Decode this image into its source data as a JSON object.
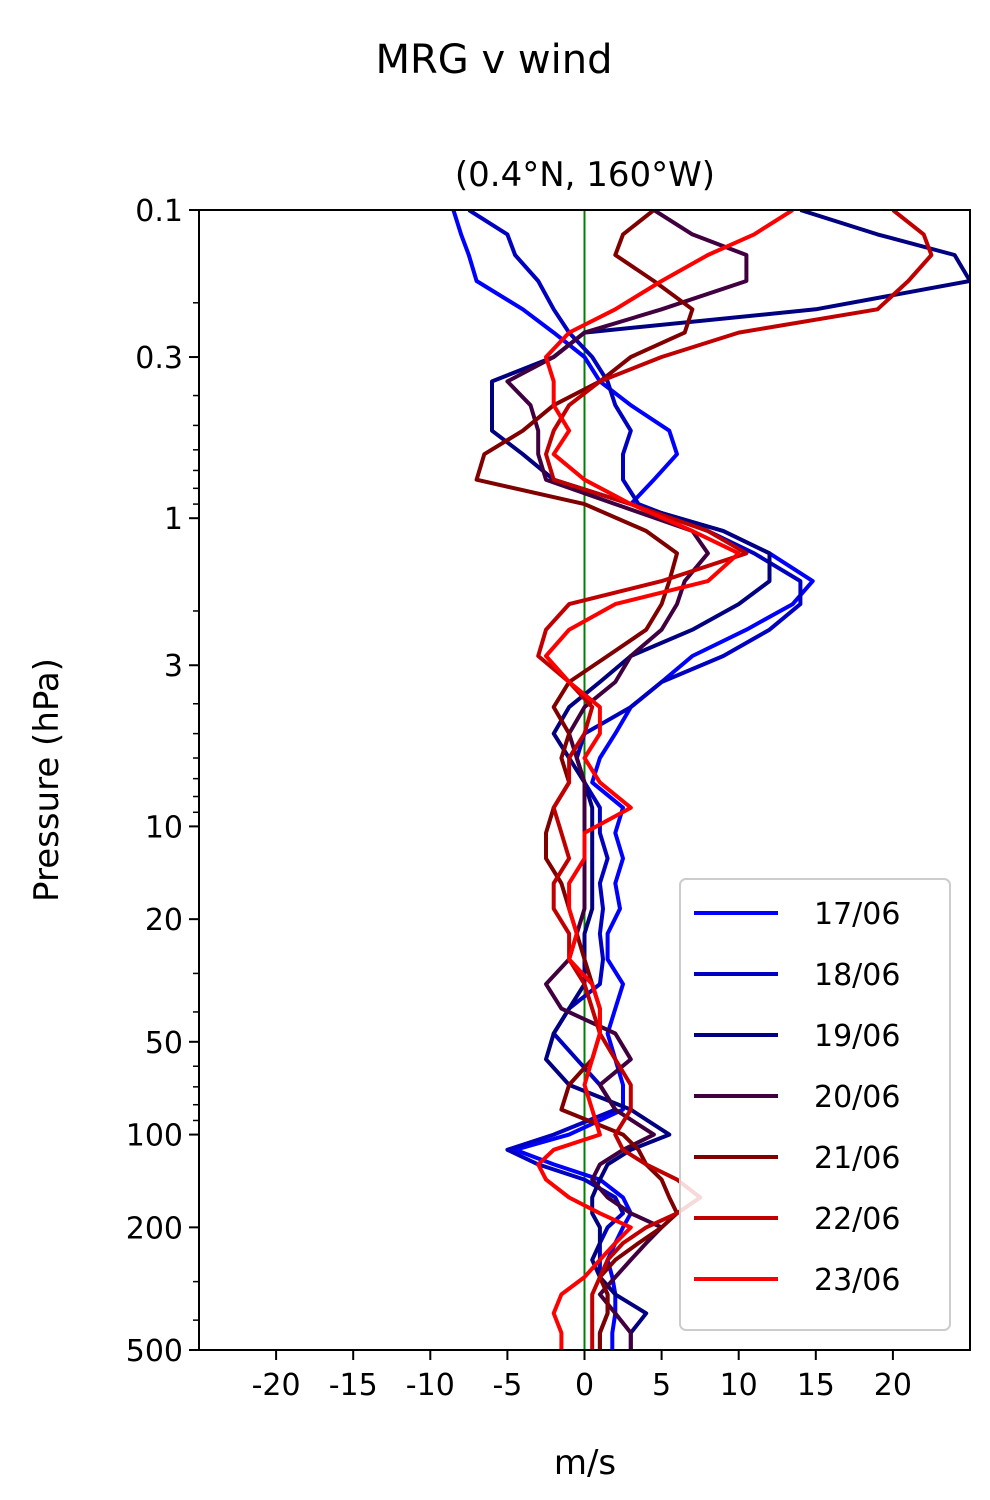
{
  "chart_data": {
    "type": "line",
    "suptitle": "MRG v wind",
    "title": "(0.4°N, 160°W)",
    "xlabel": "m/s",
    "ylabel": "Pressure (hPa)",
    "xlim": [
      -25,
      25
    ],
    "ylim": [
      500,
      0.1
    ],
    "yscale": "log",
    "xticks": [
      -20,
      -15,
      -10,
      -5,
      0,
      5,
      10,
      15,
      20
    ],
    "xtick_labels": [
      "-20",
      "-15",
      "-10",
      "-5",
      "0",
      "5",
      "10",
      "15",
      "20"
    ],
    "yticks": [
      0.1,
      0.3,
      1,
      3,
      10,
      20,
      50,
      100,
      200,
      500
    ],
    "ytick_labels": [
      "0.1",
      "0.3",
      "1",
      "3",
      "10",
      "20",
      "50",
      "100",
      "200",
      "500"
    ],
    "zero_line_color": "#008000",
    "legend_position": "lower-right",
    "series": [
      {
        "name": "17/06",
        "color": "#0000ff",
        "p": [
          0.1,
          0.12,
          0.14,
          0.17,
          0.21,
          0.25,
          0.3,
          0.36,
          0.43,
          0.52,
          0.62,
          0.75,
          0.9,
          1.1,
          1.3,
          1.6,
          1.9,
          2.3,
          2.8,
          3.4,
          4.1,
          5,
          6,
          7.2,
          8.7,
          10.5,
          12.7,
          15.3,
          18.5,
          22.3,
          27,
          32.5,
          39,
          47,
          57,
          69,
          83,
          100,
          112,
          125,
          140,
          160,
          180,
          200,
          225,
          255,
          290,
          330,
          380,
          440,
          500
        ],
        "v": [
          -8.5,
          -8,
          -7.5,
          -7,
          -4,
          -2,
          0,
          1,
          3,
          5.5,
          6,
          4.5,
          3,
          9,
          12,
          14.8,
          13.5,
          10.5,
          7,
          5,
          3,
          2,
          1,
          0.5,
          2.5,
          2,
          2.5,
          2,
          2.3,
          1.5,
          1.5,
          2.5,
          2,
          1.5,
          2,
          2.5,
          2.5,
          -1,
          -4.5,
          -2,
          1,
          2.5,
          3,
          2.5,
          2,
          1.5,
          1.8,
          2,
          2,
          1.8,
          1.8
        ]
      },
      {
        "name": "18/06",
        "color": "#0000c0",
        "p": [
          0.1,
          0.12,
          0.14,
          0.17,
          0.21,
          0.25,
          0.3,
          0.36,
          0.43,
          0.52,
          0.62,
          0.75,
          0.9,
          1.1,
          1.3,
          1.6,
          1.9,
          2.3,
          2.8,
          3.4,
          4.1,
          5,
          6,
          7.2,
          8.7,
          10.5,
          12.7,
          15.3,
          18.5,
          22.3,
          27,
          32.5,
          39,
          47,
          57,
          69,
          83,
          100,
          112,
          125,
          140,
          160,
          180,
          200,
          225,
          255,
          290,
          330,
          380,
          440,
          500
        ],
        "v": [
          -7.5,
          -5,
          -4.5,
          -3,
          -2,
          -1,
          0.5,
          1.5,
          2,
          3,
          2.5,
          2.5,
          3.5,
          8,
          11,
          14,
          14,
          12,
          9,
          5,
          3,
          0,
          -0.5,
          0,
          1,
          1,
          1.5,
          1,
          1.2,
          1,
          1.2,
          1,
          -1,
          -2,
          -0.5,
          1,
          2,
          -2,
          -5,
          -3,
          0,
          2,
          2.5,
          1.5,
          1,
          1,
          1,
          1.5,
          1.5,
          1,
          1
        ]
      },
      {
        "name": "19/06",
        "color": "#000080",
        "p": [
          0.1,
          0.12,
          0.14,
          0.17,
          0.21,
          0.25,
          0.3,
          0.36,
          0.43,
          0.52,
          0.62,
          0.75,
          0.9,
          1.1,
          1.3,
          1.6,
          1.9,
          2.3,
          2.8,
          3.4,
          4.1,
          5,
          6,
          7.2,
          8.7,
          10.5,
          12.7,
          15.3,
          18.5,
          22.3,
          27,
          32.5,
          39,
          47,
          57,
          69,
          83,
          100,
          112,
          125,
          140,
          160,
          180,
          200,
          225,
          255,
          290,
          330,
          380,
          440,
          500
        ],
        "v": [
          14,
          19,
          24,
          25,
          15,
          0,
          -2,
          -6,
          -6,
          -6,
          -4,
          -2,
          3,
          9,
          12,
          12,
          10,
          7,
          3,
          1,
          -1,
          -2,
          -1,
          0,
          0.5,
          0.5,
          0.5,
          0.5,
          0.5,
          0,
          0,
          0,
          -1,
          -2,
          -2.5,
          -1,
          3,
          5.5,
          3,
          1.5,
          1,
          0.5,
          0.5,
          1,
          1,
          0.5,
          1,
          2,
          4,
          3,
          3
        ]
      },
      {
        "name": "20/06",
        "color": "#400040",
        "p": [
          0.1,
          0.12,
          0.14,
          0.17,
          0.21,
          0.25,
          0.3,
          0.36,
          0.43,
          0.52,
          0.62,
          0.75,
          0.9,
          1.1,
          1.3,
          1.6,
          1.9,
          2.3,
          2.8,
          3.4,
          4.1,
          5,
          6,
          7.2,
          8.7,
          10.5,
          12.7,
          15.3,
          18.5,
          22.3,
          27,
          32.5,
          39,
          47,
          57,
          69,
          83,
          100,
          112,
          125,
          140,
          160,
          180,
          200,
          225,
          255,
          290,
          330,
          380,
          440,
          500
        ],
        "v": [
          4.5,
          7,
          10.5,
          10.5,
          5,
          0,
          -2,
          -5,
          -3.5,
          -3,
          -3,
          -2.5,
          2,
          7,
          8,
          6.5,
          6,
          5,
          3,
          2,
          0,
          -1,
          -0.5,
          0,
          0,
          0,
          0,
          0,
          0,
          -0.5,
          -1,
          -2.5,
          -1.5,
          2,
          3,
          1,
          2,
          4.5,
          2.5,
          1,
          0.5,
          1.5,
          3,
          5,
          4,
          3,
          2,
          1,
          2,
          3,
          3
        ]
      },
      {
        "name": "21/06",
        "color": "#800000",
        "p": [
          0.1,
          0.12,
          0.14,
          0.17,
          0.21,
          0.25,
          0.3,
          0.36,
          0.43,
          0.52,
          0.62,
          0.75,
          0.9,
          1.1,
          1.3,
          1.6,
          1.9,
          2.3,
          2.8,
          3.4,
          4.1,
          5,
          6,
          7.2,
          8.7,
          10.5,
          12.7,
          15.3,
          18.5,
          22.3,
          27,
          32.5,
          39,
          47,
          57,
          69,
          83,
          100,
          112,
          125,
          140,
          160,
          180,
          200,
          225,
          255,
          290,
          330,
          380,
          440,
          500
        ],
        "v": [
          4.5,
          2.5,
          2,
          4.5,
          7,
          6.5,
          3,
          1,
          -2,
          -4,
          -6.5,
          -7,
          0,
          4,
          6,
          5.5,
          5,
          4,
          1.5,
          -1,
          -2,
          -1,
          -1.5,
          -1,
          -2,
          -2.5,
          -2.5,
          -1.5,
          -1,
          -0.5,
          0,
          0.5,
          1,
          1,
          0.5,
          -1,
          -1.5,
          2.5,
          3.5,
          4,
          5,
          5.5,
          6,
          5,
          3.5,
          2,
          1,
          1.5,
          1.5,
          1,
          1
        ]
      },
      {
        "name": "22/06",
        "color": "#c00000",
        "p": [
          0.1,
          0.12,
          0.14,
          0.17,
          0.21,
          0.25,
          0.3,
          0.36,
          0.43,
          0.52,
          0.62,
          0.75,
          0.9,
          1.1,
          1.3,
          1.6,
          1.9,
          2.3,
          2.8,
          3.4,
          4.1,
          5,
          6,
          7.2,
          8.7,
          10.5,
          12.7,
          15.3,
          18.5,
          22.3,
          27,
          32.5,
          39,
          47,
          57,
          69,
          83,
          100,
          112,
          125,
          140,
          160,
          180,
          200,
          225,
          255,
          290,
          330,
          380,
          440,
          500
        ],
        "v": [
          20,
          22,
          22.5,
          21,
          19,
          10,
          5,
          1,
          -1,
          -2,
          -2.5,
          -2,
          3,
          8,
          10.5,
          5,
          -1,
          -2.5,
          -3,
          -1,
          0.5,
          0,
          -1,
          -1,
          -2,
          -1.5,
          -1,
          -2,
          -2,
          -1,
          -1,
          0,
          0.5,
          1,
          2,
          3,
          3,
          2,
          2.5,
          4,
          6,
          7.5,
          6,
          4,
          2.5,
          1.5,
          1,
          0.5,
          0.5,
          0.5,
          0.5
        ]
      },
      {
        "name": "23/06",
        "color": "#ff0000",
        "p": [
          0.1,
          0.12,
          0.14,
          0.17,
          0.21,
          0.25,
          0.3,
          0.36,
          0.43,
          0.52,
          0.62,
          0.75,
          0.9,
          1.1,
          1.3,
          1.6,
          1.9,
          2.3,
          2.8,
          3.4,
          4.1,
          5,
          6,
          7.2,
          8.7,
          10.5,
          12.7,
          15.3,
          18.5,
          22.3,
          27,
          32.5,
          39,
          47,
          57,
          69,
          83,
          100,
          112,
          125,
          140,
          160,
          180,
          200,
          225,
          255,
          290,
          330,
          380,
          440,
          500
        ],
        "v": [
          13.5,
          11,
          8,
          5,
          2,
          -1,
          -2.5,
          -2,
          -2,
          -1,
          -2,
          0,
          3,
          7,
          10,
          8,
          2,
          -1,
          -2.5,
          -1,
          1,
          1,
          0,
          1,
          3,
          0,
          0,
          -1,
          -1,
          -0.5,
          -1,
          0.5,
          1,
          1,
          0.5,
          0,
          0.5,
          1,
          -2,
          -3,
          -2.5,
          -1,
          1,
          3,
          2,
          1,
          0,
          -1.5,
          -2,
          -1.5,
          -1.5
        ]
      }
    ]
  }
}
